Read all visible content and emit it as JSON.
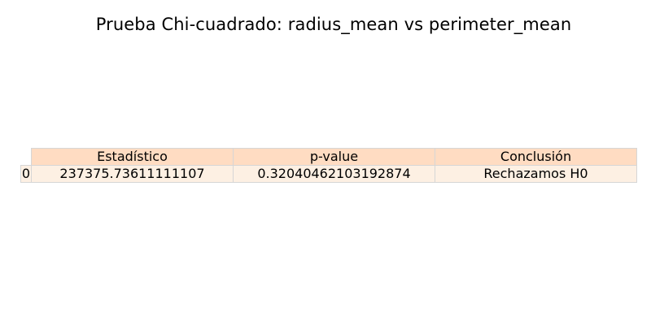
{
  "chart_data": {
    "type": "table",
    "title": "Prueba Chi-cuadrado: radius_mean vs perimeter_mean",
    "columns": [
      "Estadístico",
      "p-value",
      "Conclusión"
    ],
    "rows": [
      {
        "index": "0",
        "cells": [
          "237375.73611111107",
          "0.32040462103192874",
          "Rechazamos H0"
        ]
      }
    ],
    "colors": {
      "header_fill": "#ffdcc2",
      "cell_fill": "#fdf0e3",
      "border": "#d6d6d6"
    }
  }
}
